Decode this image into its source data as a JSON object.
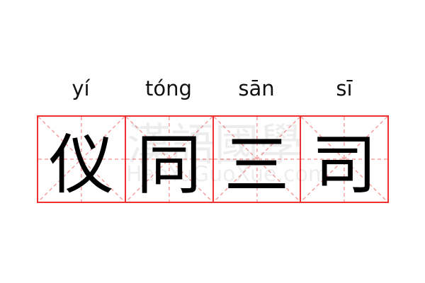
{
  "words": [
    {
      "pinyin": "yí",
      "hanzi": "仪"
    },
    {
      "pinyin": "tóng",
      "hanzi": "同"
    },
    {
      "pinyin": "sān",
      "hanzi": "三"
    },
    {
      "pinyin": "sī",
      "hanzi": "司"
    }
  ],
  "watermark": {
    "chinese": "漢語國學",
    "latin": "HanYuGuoXue.com"
  },
  "colors": {
    "grid_border": "#f03030",
    "guide_lines": "#f5a0a0",
    "text": "#000000"
  }
}
